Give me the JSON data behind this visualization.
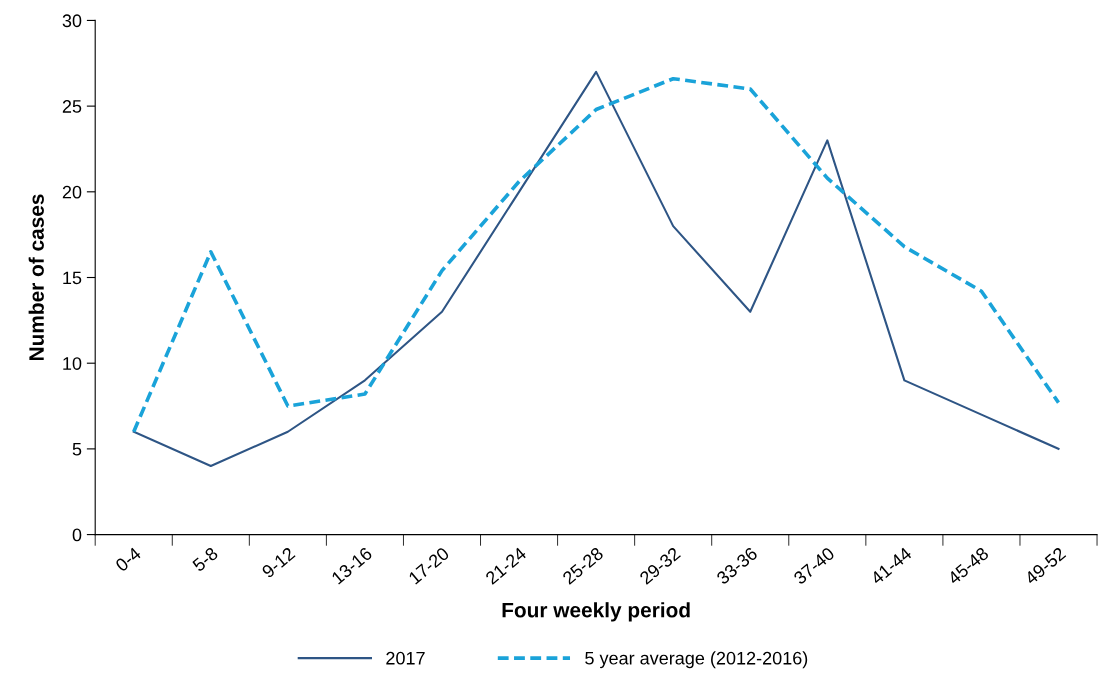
{
  "chart_data": {
    "type": "line",
    "xlabel": "Four weekly period",
    "ylabel": "Number of cases",
    "categories": [
      "0-4",
      "5-8",
      "9-12",
      "13-16",
      "17-20",
      "21-24",
      "25-28",
      "29-32",
      "33-36",
      "37-40",
      "41-44",
      "45-48",
      "49-52"
    ],
    "series": [
      {
        "name": "2017",
        "color": "#2e5585",
        "line_style": "solid",
        "values": [
          6,
          4,
          6,
          9,
          13,
          20,
          27,
          18,
          13,
          23,
          9,
          7,
          5
        ]
      },
      {
        "name": "5 year average (2012-2016)",
        "color": "#1aa3d9",
        "line_style": "dashed",
        "values": [
          6,
          16.5,
          7.5,
          8.2,
          15.4,
          20.6,
          24.8,
          26.6,
          26,
          20.8,
          16.8,
          14.2,
          7.7
        ]
      }
    ],
    "ylim": [
      0,
      30
    ],
    "yticks": [
      0,
      5,
      10,
      15,
      20,
      25,
      30
    ],
    "grid": false,
    "legend": "bottom",
    "marker": "none"
  }
}
